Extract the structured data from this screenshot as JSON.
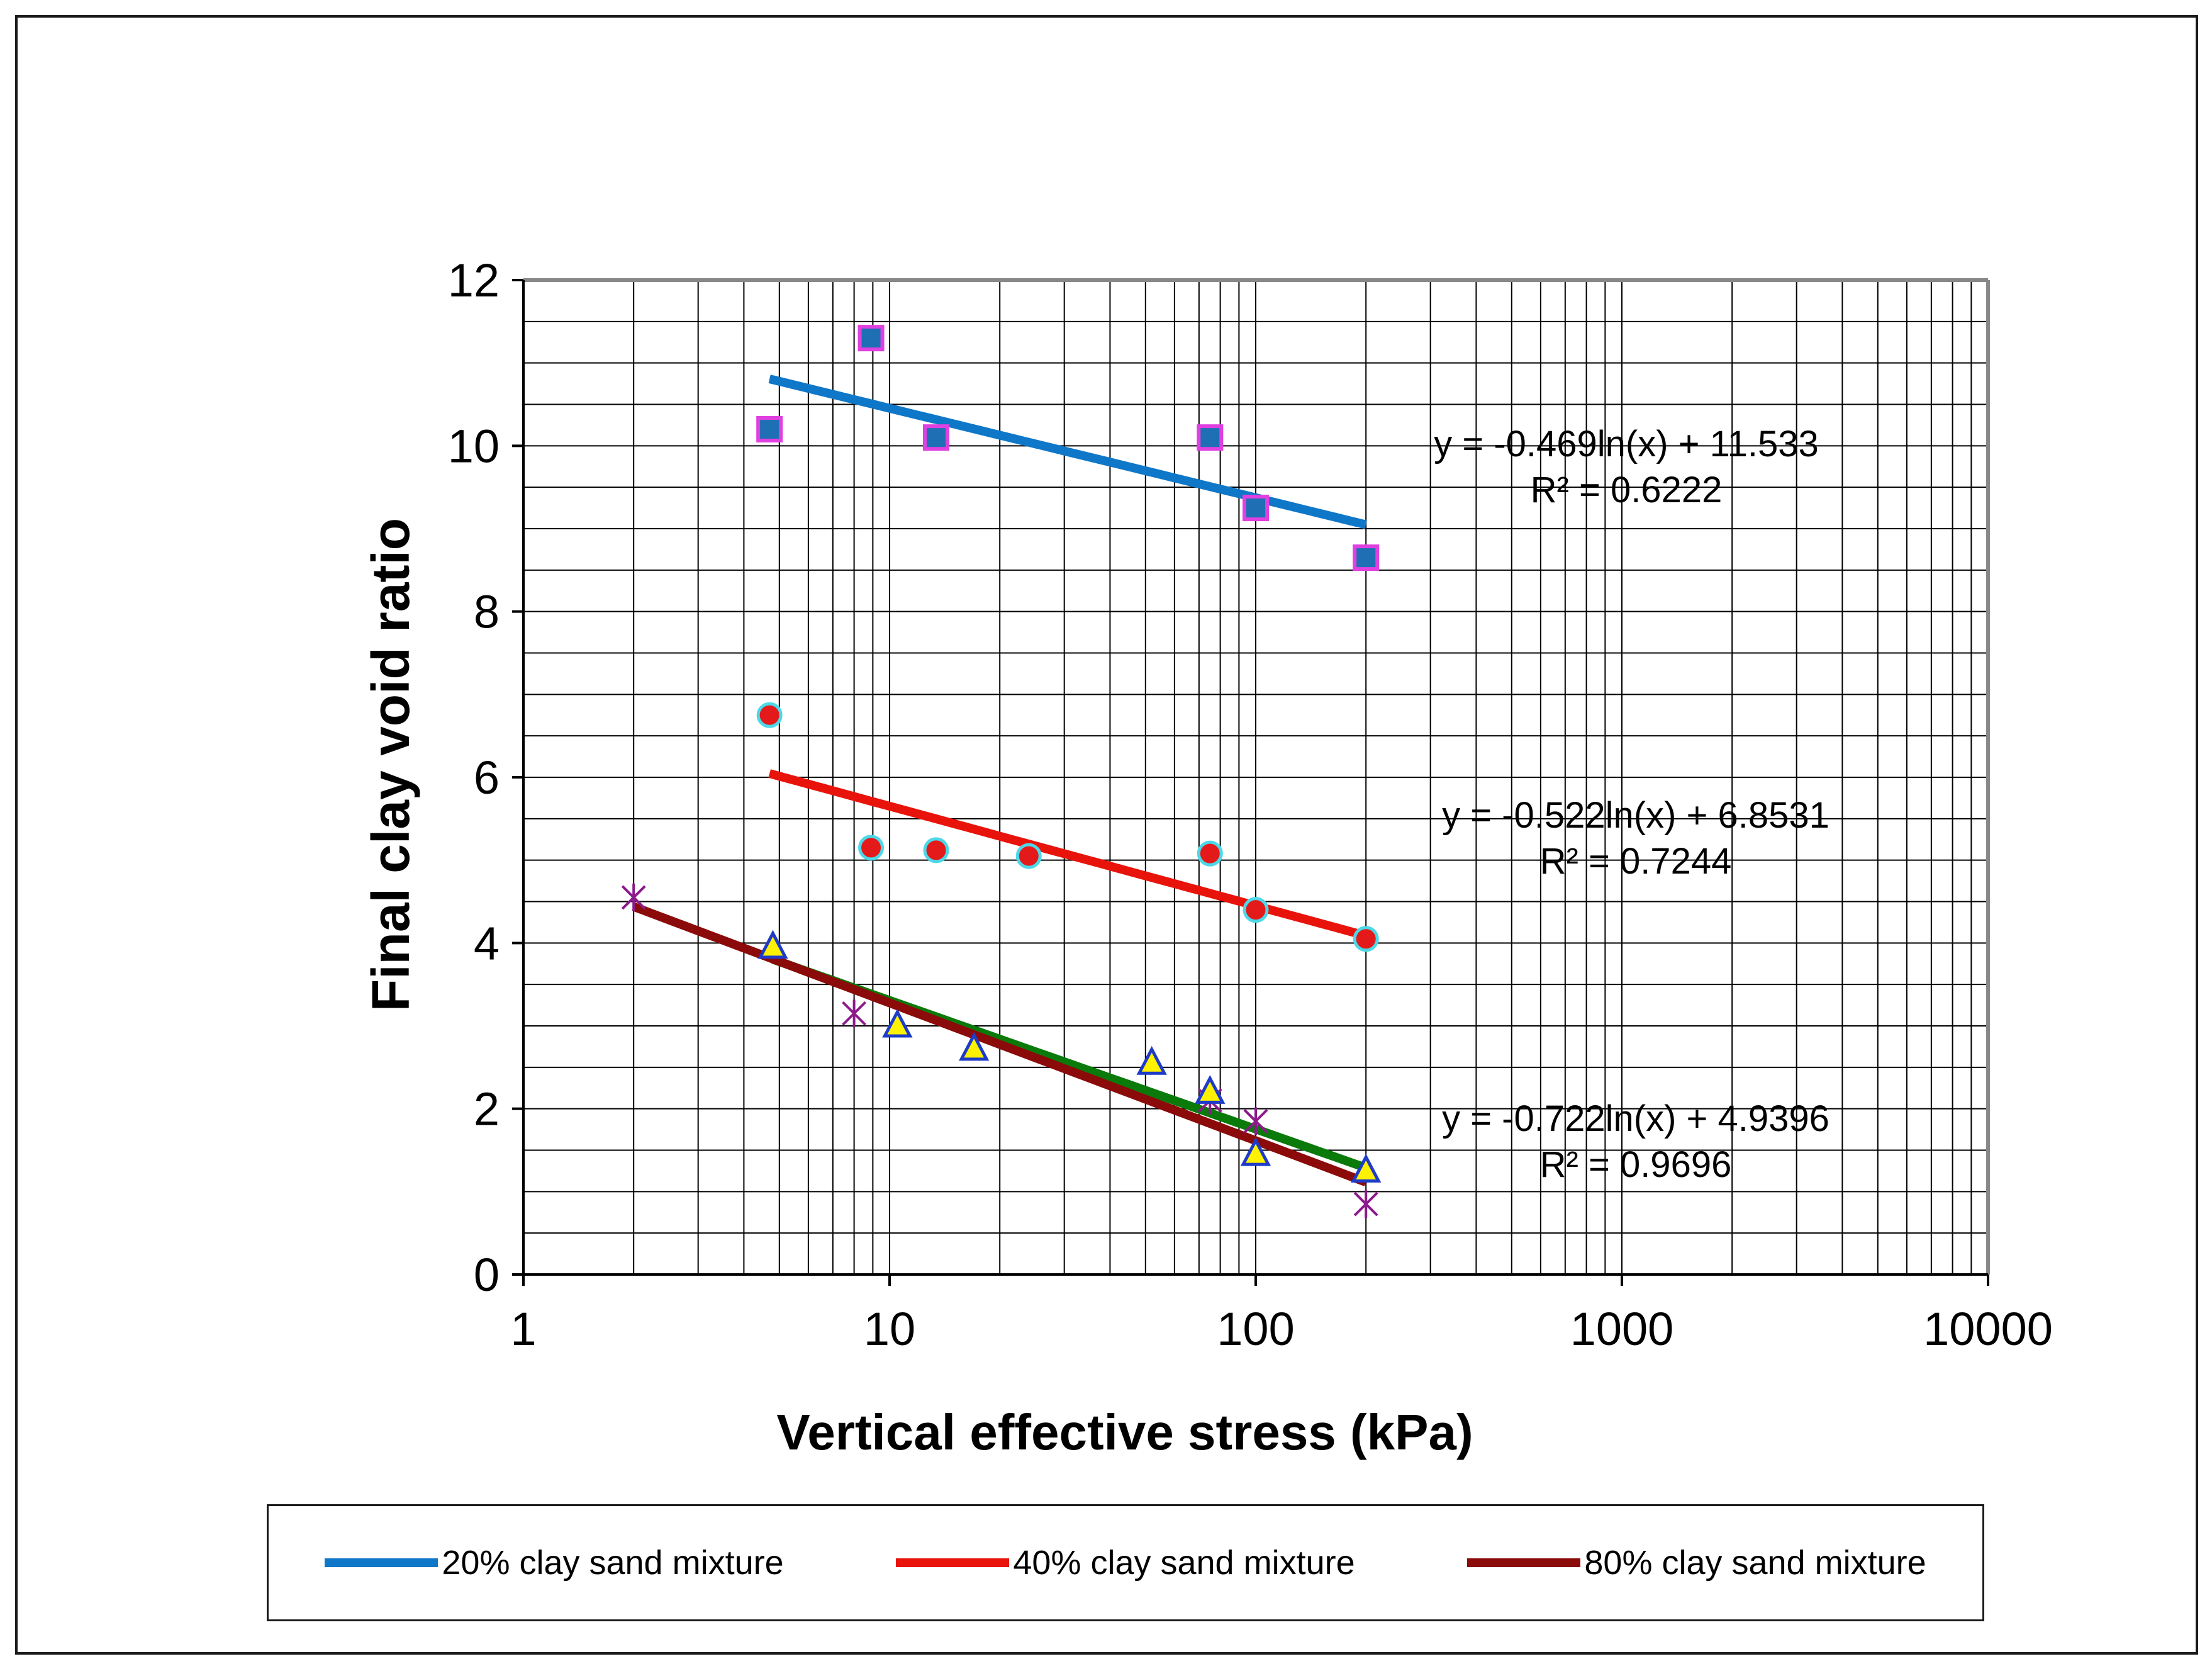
{
  "chart_data": {
    "type": "scatter",
    "xscale": "log",
    "xlim": [
      1,
      10000
    ],
    "ylim": [
      0,
      12
    ],
    "xticks": [
      1,
      10,
      100,
      1000,
      10000
    ],
    "xtick_labels": [
      "1",
      "10",
      "100",
      "1000",
      "10000"
    ],
    "yticks": [
      0,
      2,
      4,
      6,
      8,
      10,
      12
    ],
    "ytick_labels": [
      "0",
      "2",
      "4",
      "6",
      "8",
      "10",
      "12"
    ],
    "xlabel": "Vertical effective stress (kPa)",
    "ylabel": "Final clay void ratio",
    "grid": true,
    "legend_position": "bottom",
    "series": [
      {
        "name": "20% clay sand mixture",
        "marker": "square",
        "marker_fill": "#1F6FB4",
        "marker_edge": "#E040E0",
        "trend_color": "#0F77C8",
        "points": [
          [
            4.7,
            10.2
          ],
          [
            8.9,
            11.3
          ],
          [
            13.4,
            10.1
          ],
          [
            75,
            10.1
          ],
          [
            100,
            9.25
          ],
          [
            200,
            8.65
          ]
        ],
        "trend": {
          "a": -0.469,
          "b": 11.533,
          "x_from": 4.7,
          "x_to": 200
        },
        "equation": "y = -0.469ln(x) + 11.533",
        "r2": "R² = 0.6222"
      },
      {
        "name": "40% clay sand mixture",
        "marker": "circle",
        "marker_fill": "#E41A1A",
        "marker_edge": "#4DD8E8",
        "trend_color": "#E8140C",
        "points": [
          [
            4.7,
            6.75
          ],
          [
            8.9,
            5.15
          ],
          [
            13.4,
            5.12
          ],
          [
            24,
            5.05
          ],
          [
            75,
            5.08
          ],
          [
            100,
            4.4
          ],
          [
            200,
            4.05
          ]
        ],
        "trend": {
          "a": -0.522,
          "b": 6.8531,
          "x_from": 4.7,
          "x_to": 200
        },
        "equation": "y = -0.522ln(x) + 6.8531",
        "r2": "R² = 0.7244"
      },
      {
        "name": "80% clay sand mixture",
        "marker": "star",
        "marker_fill": "#8B1A8B",
        "marker_edge": "#8B1A8B",
        "trend_color": "#8B0A0A",
        "points": [
          [
            2,
            4.55
          ],
          [
            8,
            3.15
          ],
          [
            75,
            2.1
          ],
          [
            100,
            1.85
          ],
          [
            200,
            0.85
          ]
        ],
        "trend": {
          "a": -0.722,
          "b": 4.9396,
          "x_from": 2,
          "x_to": 200
        },
        "equation": "y = -0.722ln(x) + 4.9396",
        "r2": "R² = 0.9696"
      },
      {
        "name": "",
        "marker": "triangle",
        "marker_fill": "#FFF200",
        "marker_edge": "#1E3CC8",
        "trend_color": "#0A7A0A",
        "points": [
          [
            4.8,
            3.95
          ],
          [
            10.5,
            3.0
          ],
          [
            17,
            2.72
          ],
          [
            52,
            2.55
          ],
          [
            75,
            2.2
          ],
          [
            100,
            1.45
          ],
          [
            200,
            1.25
          ]
        ],
        "trend": {
          "a": -0.6744,
          "b": 4.8605,
          "x_from": 4.8,
          "x_to": 200
        },
        "equation": "",
        "r2": ""
      }
    ]
  },
  "legend": {
    "items": [
      {
        "label": "20% clay sand mixture",
        "color": "#0F77C8"
      },
      {
        "label": "40% clay sand mixture",
        "color": "#E8140C"
      },
      {
        "label": "80% clay sand mixture",
        "color": "#8B0A0A"
      }
    ]
  }
}
